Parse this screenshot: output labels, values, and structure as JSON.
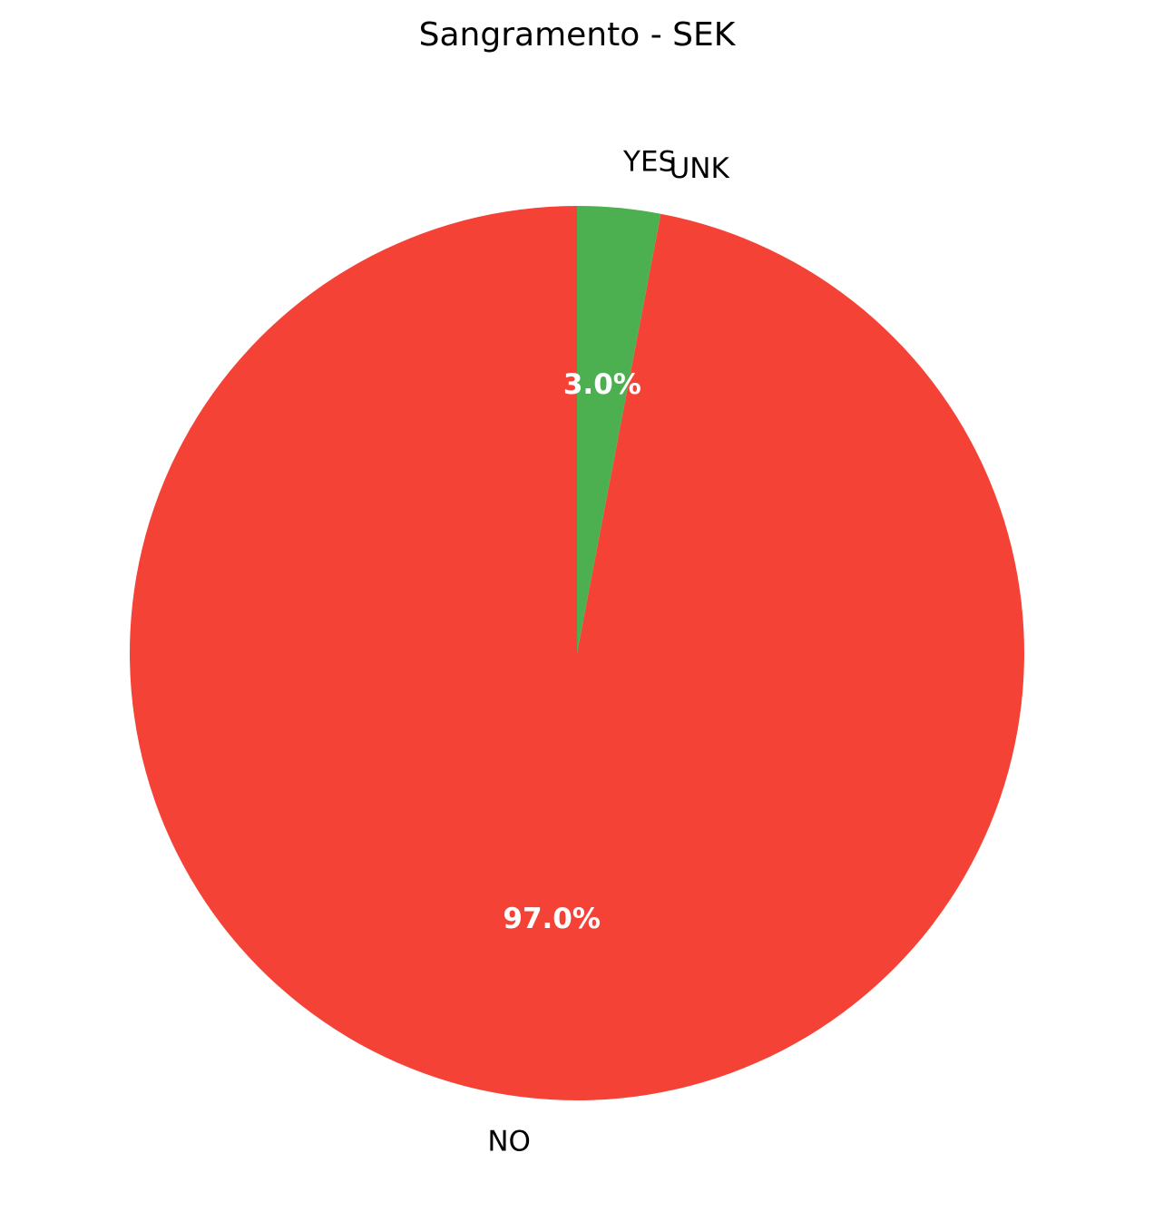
{
  "chart_data": {
    "type": "pie",
    "title": "Sangramento - SEK",
    "start_angle": "top",
    "direction": "clockwise",
    "slices": [
      {
        "label": "NO",
        "value": 97.0,
        "pct_label": "97.0%",
        "color": "#f44336"
      },
      {
        "label": "UNK",
        "value": 0.0,
        "pct_label": "",
        "color": "#9e9e9e"
      },
      {
        "label": "YES",
        "value": 3.0,
        "pct_label": "3.0%",
        "color": "#4caf50"
      }
    ]
  }
}
